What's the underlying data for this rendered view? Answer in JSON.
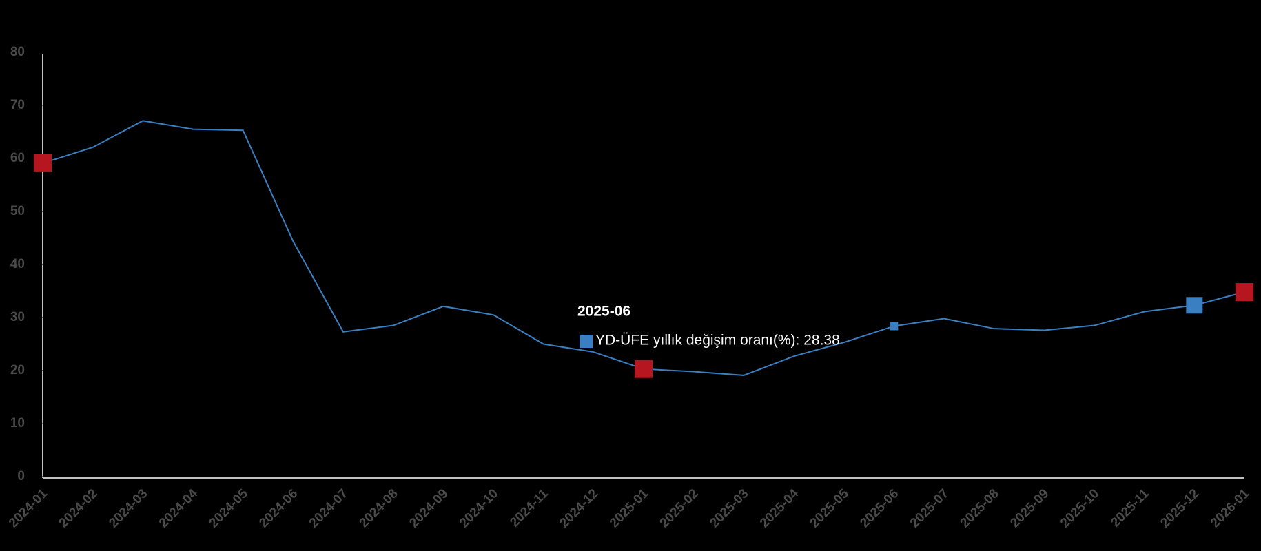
{
  "chart_data": {
    "type": "line",
    "categories": [
      "2024-01",
      "2024-02",
      "2024-03",
      "2024-04",
      "2024-05",
      "2024-06",
      "2024-07",
      "2024-08",
      "2024-09",
      "2024-10",
      "2024-11",
      "2024-12",
      "2025-01",
      "2025-02",
      "2025-03",
      "2025-04",
      "2025-05",
      "2025-06",
      "2025-07",
      "2025-08",
      "2025-09",
      "2025-10",
      "2025-11",
      "2025-12",
      "2026-01"
    ],
    "values": [
      59.1,
      62.1,
      67.1,
      65.5,
      65.3,
      44.4,
      27.3,
      28.5,
      32.1,
      30.5,
      25.0,
      23.5,
      20.3,
      19.8,
      19.1,
      22.7,
      25.3,
      28.38,
      29.8,
      27.9,
      27.6,
      28.5,
      31.1,
      32.3,
      34.8
    ],
    "color": "#3a7fc1",
    "marker_color": "#b5161f",
    "marked": [
      0,
      12,
      24
    ],
    "selected": 23,
    "hovered": 17,
    "ylim": [
      0,
      80
    ],
    "yticks": [
      0,
      10,
      20,
      30,
      40,
      50,
      60,
      70,
      80
    ],
    "tooltip": {
      "title": "2025-06",
      "text": "YD-ÜFE yıllık değişim oranı(%): 28.38"
    }
  }
}
